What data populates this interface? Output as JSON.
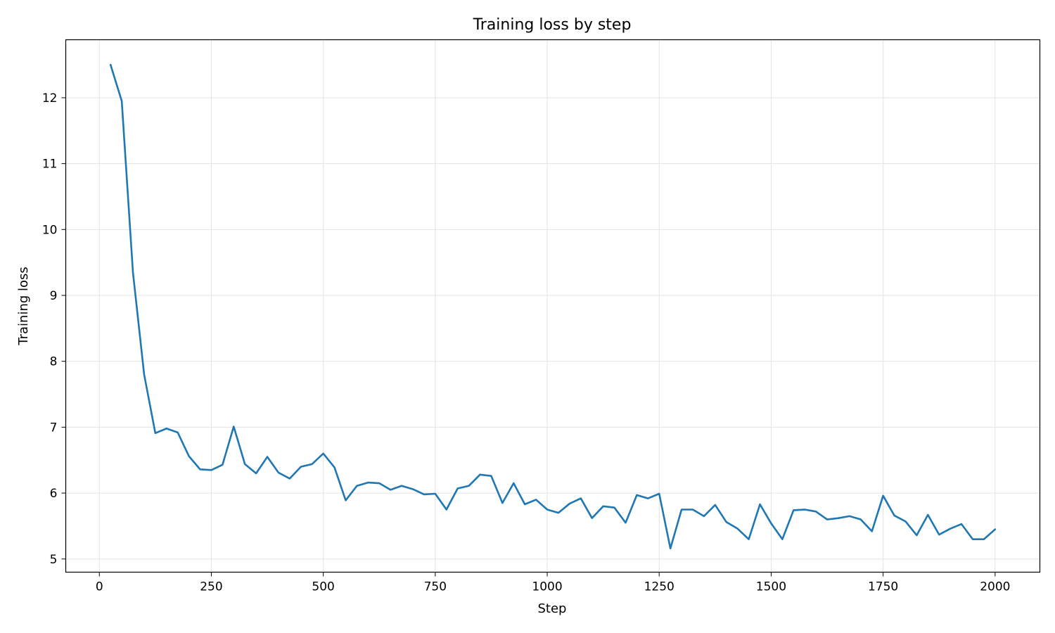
{
  "chart_data": {
    "type": "line",
    "title": "Training loss by step",
    "xlabel": "Step",
    "ylabel": "Training loss",
    "xlim": [
      -75,
      2100
    ],
    "ylim": [
      4.8,
      12.88
    ],
    "xticks": [
      0,
      250,
      500,
      750,
      1000,
      1250,
      1500,
      1750,
      2000
    ],
    "yticks": [
      5,
      6,
      7,
      8,
      9,
      10,
      11,
      12
    ],
    "grid": true,
    "series": [
      {
        "color": "#1f77b4",
        "x": [
          25,
          50,
          75,
          100,
          125,
          150,
          175,
          200,
          225,
          250,
          275,
          300,
          325,
          350,
          375,
          400,
          425,
          450,
          475,
          500,
          525,
          550,
          575,
          600,
          625,
          650,
          675,
          700,
          725,
          750,
          775,
          800,
          825,
          850,
          875,
          900,
          925,
          950,
          975,
          1000,
          1025,
          1050,
          1075,
          1100,
          1125,
          1150,
          1175,
          1200,
          1225,
          1250,
          1275,
          1300,
          1325,
          1350,
          1375,
          1400,
          1425,
          1450,
          1475,
          1500,
          1525,
          1550,
          1575,
          1600,
          1625,
          1650,
          1675,
          1700,
          1725,
          1750,
          1775,
          1800,
          1825,
          1850,
          1875,
          1900,
          1925,
          1950,
          1975,
          2000
        ],
        "y": [
          12.5,
          11.95,
          9.35,
          7.8,
          6.91,
          6.98,
          6.92,
          6.56,
          6.36,
          6.35,
          6.43,
          7.01,
          6.44,
          6.3,
          6.55,
          6.31,
          6.22,
          6.4,
          6.44,
          6.6,
          6.39,
          5.89,
          6.11,
          6.16,
          6.15,
          6.05,
          6.11,
          6.06,
          5.98,
          5.99,
          5.75,
          6.07,
          6.11,
          6.28,
          6.26,
          5.85,
          6.15,
          5.83,
          5.9,
          5.75,
          5.7,
          5.84,
          5.92,
          5.62,
          5.8,
          5.78,
          5.55,
          5.97,
          5.92,
          5.99,
          5.16,
          5.75,
          5.75,
          5.65,
          5.82,
          5.56,
          5.46,
          5.3,
          5.83,
          5.54,
          5.3,
          5.74,
          5.75,
          5.72,
          5.6,
          5.62,
          5.65,
          5.6,
          5.42,
          5.96,
          5.66,
          5.57,
          5.36,
          5.67,
          5.37,
          5.46,
          5.53,
          5.3,
          5.3,
          5.45
        ]
      }
    ]
  }
}
